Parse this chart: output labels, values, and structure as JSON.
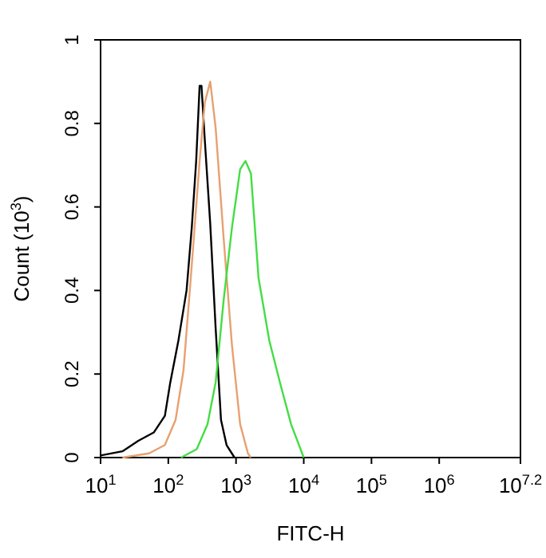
{
  "chart_data": {
    "type": "line",
    "xlabel": "FITC-H",
    "ylabel": "Count (10$^{3}$)",
    "log": "x",
    "xlim": [
      10,
      15848932
    ],
    "xticks": [
      {
        "value": 10,
        "label": "10$^{1}$"
      },
      {
        "value": 100,
        "label": "10$^{2}$"
      },
      {
        "value": 1000,
        "label": "10$^{3}$"
      },
      {
        "value": 10000,
        "label": "10$^{4}$"
      },
      {
        "value": 100000,
        "label": "10$^{5}$"
      },
      {
        "value": 1000000,
        "label": "10$^{6}$"
      },
      {
        "value": 15848932,
        "label": "10$^{7.2}$"
      }
    ],
    "ylim": [
      0,
      1
    ],
    "yticks": [
      0,
      0.2,
      0.4,
      0.6,
      0.8,
      1
    ],
    "grid": false,
    "marker": "none",
    "line_style": "solid",
    "series": [
      {
        "color": "#000000",
        "x": [
          10,
          21,
          36,
          61,
          89,
          107,
          141,
          186,
          222,
          258,
          290,
          309,
          346,
          416,
          500,
          600,
          725,
          950
        ],
        "values": [
          0.005,
          0.015,
          0.04,
          0.06,
          0.1,
          0.18,
          0.28,
          0.4,
          0.55,
          0.71,
          0.89,
          0.89,
          0.76,
          0.56,
          0.31,
          0.09,
          0.03,
          0
        ]
      },
      {
        "color": "#e8a070",
        "x": [
          21,
          52,
          89,
          128,
          168,
          222,
          290,
          346,
          416,
          500,
          660,
          870,
          1150,
          1500,
          1650
        ],
        "values": [
          0,
          0.01,
          0.03,
          0.09,
          0.21,
          0.46,
          0.71,
          0.85,
          0.9,
          0.79,
          0.52,
          0.27,
          0.08,
          0.01,
          0
        ]
      },
      {
        "color": "#44dd44",
        "x": [
          154,
          263,
          380,
          500,
          660,
          870,
          1150,
          1380,
          1660,
          2150,
          3100,
          4450,
          6500,
          10000
        ],
        "values": [
          0,
          0.02,
          0.08,
          0.18,
          0.38,
          0.55,
          0.69,
          0.71,
          0.68,
          0.43,
          0.28,
          0.18,
          0.08,
          0
        ]
      }
    ]
  }
}
